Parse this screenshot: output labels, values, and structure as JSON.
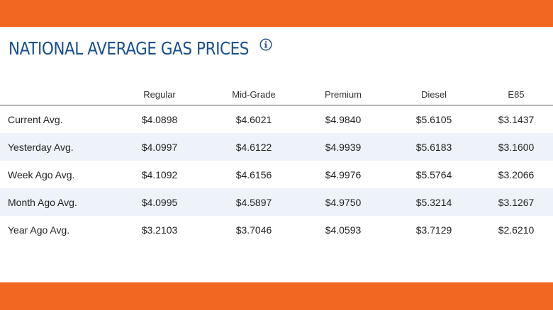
{
  "title": "NATIONAL AVERAGE GAS PRICES",
  "info_icon": "info-circle-icon",
  "colors": {
    "accent_bar": "#f26722",
    "title": "#1a4f8c",
    "alt_row": "#eef3fa"
  },
  "table": {
    "headers": [
      "",
      "Regular",
      "Mid-Grade",
      "Premium",
      "Diesel",
      "E85"
    ],
    "rows": [
      {
        "label": "Current Avg.",
        "values": [
          "$4.0898",
          "$4.6021",
          "$4.9840",
          "$5.6105",
          "$3.1437"
        ]
      },
      {
        "label": "Yesterday Avg.",
        "values": [
          "$4.0997",
          "$4.6122",
          "$4.9939",
          "$5.6183",
          "$3.1600"
        ]
      },
      {
        "label": "Week Ago Avg.",
        "values": [
          "$4.1092",
          "$4.6156",
          "$4.9976",
          "$5.5764",
          "$3.2066"
        ]
      },
      {
        "label": "Month Ago Avg.",
        "values": [
          "$4.0995",
          "$4.5897",
          "$4.9750",
          "$5.3214",
          "$3.1267"
        ]
      },
      {
        "label": "Year Ago Avg.",
        "values": [
          "$3.2103",
          "$3.7046",
          "$4.0593",
          "$3.7129",
          "$2.6210"
        ]
      }
    ]
  }
}
